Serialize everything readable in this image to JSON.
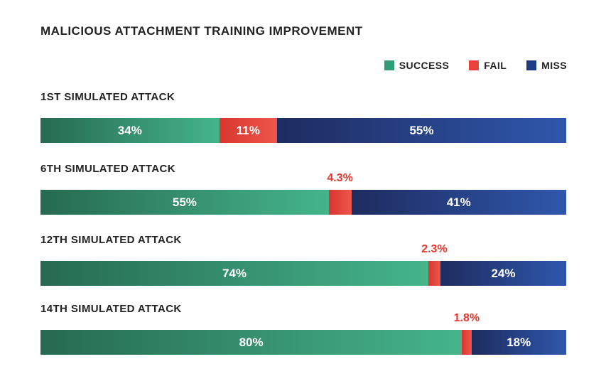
{
  "chart_data": {
    "type": "bar",
    "orientation": "horizontal-stacked",
    "title": "MALICIOUS ATTACHMENT TRAINING IMPROVEMENT",
    "legend": [
      {
        "name": "SUCCESS",
        "color": "#2f9e78"
      },
      {
        "name": "FAIL",
        "color": "#e8423a"
      },
      {
        "name": "MISS",
        "color": "#1f3c87"
      }
    ],
    "series_names": [
      "SUCCESS",
      "FAIL",
      "MISS"
    ],
    "rows": [
      {
        "label": "1ST SIMULATED ATTACK",
        "success": 34,
        "fail": 11,
        "miss": 55,
        "success_label": "34%",
        "fail_label": "11%",
        "miss_label": "55%",
        "fail_label_position": "inside"
      },
      {
        "label": "6TH SIMULATED ATTACK",
        "success": 55,
        "fail": 4.3,
        "miss": 41,
        "success_label": "55%",
        "fail_label": "4.3%",
        "miss_label": "41%",
        "fail_label_position": "above"
      },
      {
        "label": "12TH SIMULATED ATTACK",
        "success": 74,
        "fail": 2.3,
        "miss": 24,
        "success_label": "74%",
        "fail_label": "2.3%",
        "miss_label": "24%",
        "fail_label_position": "above"
      },
      {
        "label": "14TH SIMULATED ATTACK",
        "success": 80,
        "fail": 1.8,
        "miss": 18,
        "success_label": "80%",
        "fail_label": "1.8%",
        "miss_label": "18%",
        "fail_label_position": "above"
      }
    ],
    "colors": {
      "success_gradient_start": "#266a51",
      "success_gradient_end": "#45b58b",
      "fail_gradient_start": "#d8362e",
      "fail_gradient_end": "#ee564c",
      "miss_gradient_start": "#1e2c60",
      "miss_gradient_end": "#2f57ac",
      "fail_callout_text": "#e6372e",
      "text": "#232323"
    },
    "xlim": [
      0,
      100
    ],
    "grid": false,
    "legend_position": "top-right"
  }
}
